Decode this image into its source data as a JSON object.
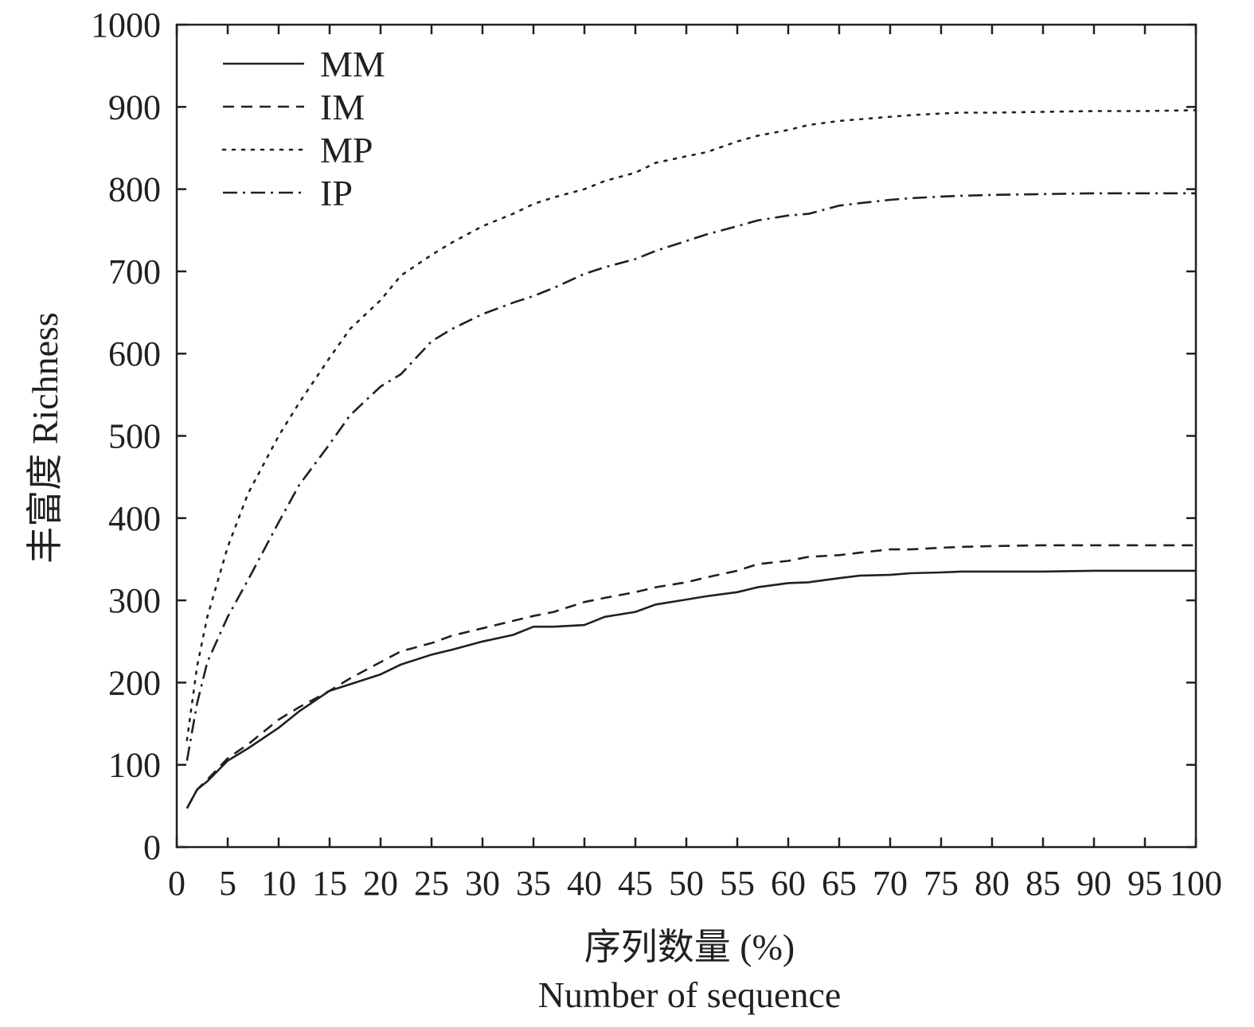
{
  "chart_data": {
    "type": "line",
    "title": "",
    "xlabel_cn": "序列数量 (%)",
    "xlabel_en": "Number of sequence",
    "ylabel": "丰富度 Richness",
    "xlim": [
      0,
      100
    ],
    "ylim": [
      0,
      1000
    ],
    "xticks": [
      0,
      5,
      10,
      15,
      20,
      25,
      30,
      35,
      40,
      45,
      50,
      55,
      60,
      65,
      70,
      75,
      80,
      85,
      90,
      95,
      100
    ],
    "yticks": [
      0,
      100,
      200,
      300,
      400,
      500,
      600,
      700,
      800,
      900,
      1000
    ],
    "grid": false,
    "legend_position": "top-left",
    "colors": {
      "line": "#231f20",
      "background": "#ffffff"
    },
    "x": [
      1,
      2,
      3,
      5,
      7,
      10,
      12,
      15,
      17,
      20,
      22,
      25,
      27,
      30,
      33,
      35,
      37,
      40,
      42,
      45,
      47,
      50,
      52,
      55,
      57,
      60,
      62,
      65,
      67,
      70,
      72,
      75,
      77,
      80,
      85,
      90,
      95,
      100
    ],
    "series": [
      {
        "name": "MM",
        "style": "solid",
        "values": [
          47,
          70,
          80,
          105,
          120,
          145,
          165,
          190,
          198,
          210,
          222,
          234,
          240,
          250,
          258,
          268,
          268,
          270,
          280,
          286,
          295,
          301,
          305,
          310,
          316,
          321,
          322,
          327,
          330,
          331,
          333,
          334,
          335,
          335,
          335,
          336,
          336,
          336
        ]
      },
      {
        "name": "IM",
        "style": "dashed",
        "values": [
          47,
          70,
          82,
          108,
          125,
          155,
          170,
          190,
          205,
          225,
          238,
          248,
          257,
          266,
          275,
          281,
          286,
          298,
          303,
          310,
          316,
          322,
          328,
          336,
          344,
          348,
          353,
          355,
          358,
          362,
          362,
          364,
          365,
          366,
          367,
          367,
          367,
          367
        ]
      },
      {
        "name": "MP",
        "style": "dotted",
        "values": [
          130,
          220,
          280,
          365,
          430,
          500,
          540,
          595,
          630,
          665,
          695,
          720,
          735,
          755,
          770,
          782,
          790,
          800,
          810,
          820,
          832,
          840,
          845,
          858,
          865,
          872,
          878,
          883,
          885,
          888,
          890,
          892,
          893,
          893,
          894,
          895,
          895,
          896
        ]
      },
      {
        "name": "IP",
        "style": "dashdot",
        "values": [
          105,
          175,
          225,
          280,
          325,
          395,
          440,
          490,
          525,
          560,
          575,
          615,
          630,
          648,
          662,
          670,
          680,
          697,
          705,
          715,
          725,
          737,
          745,
          755,
          762,
          768,
          770,
          780,
          783,
          787,
          789,
          791,
          792,
          793,
          794,
          795,
          795,
          795
        ]
      }
    ]
  }
}
